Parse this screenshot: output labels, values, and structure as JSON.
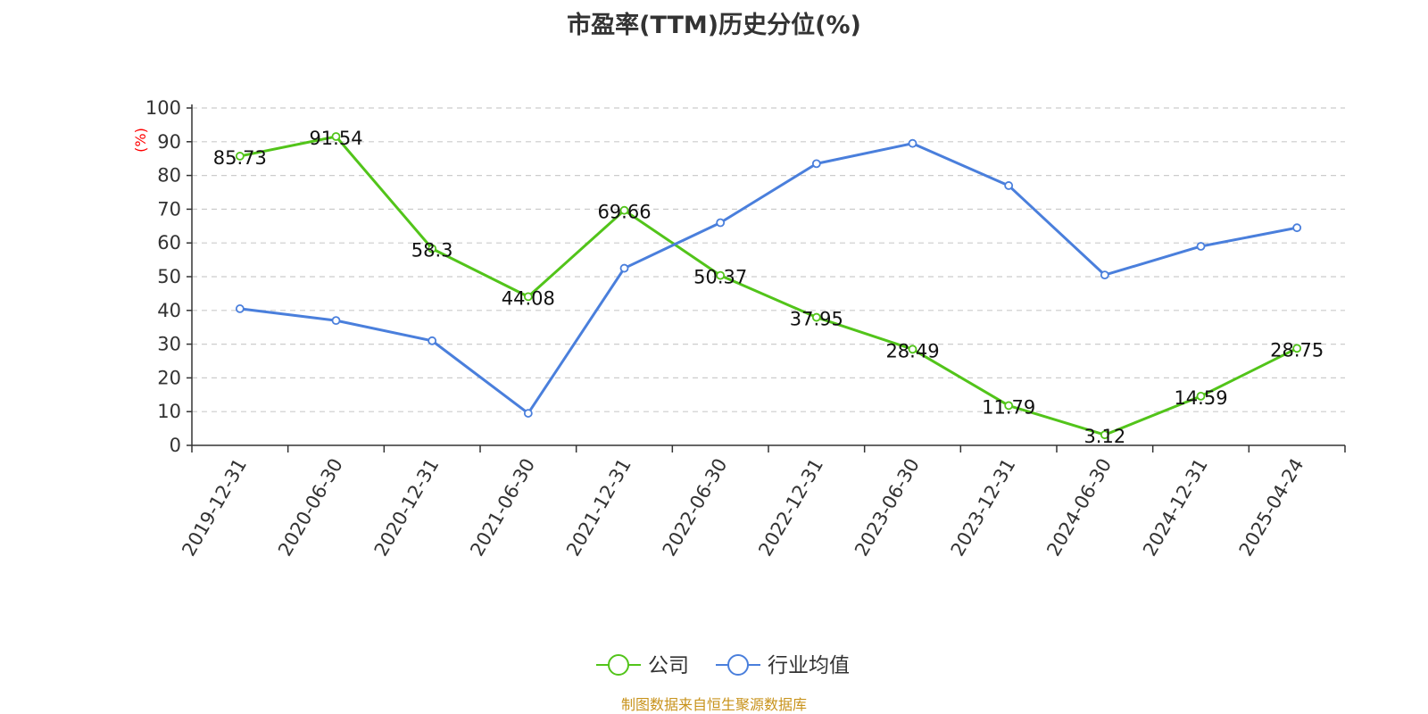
{
  "chart_data": {
    "type": "line",
    "title": "市盈率(TTM)历史分位(%)",
    "ylabel": "(%)",
    "ylim": [
      0,
      100
    ],
    "yticks": [
      0,
      10,
      20,
      30,
      40,
      50,
      60,
      70,
      80,
      90,
      100
    ],
    "ytick_labels": [
      "0",
      "10",
      "20",
      "30",
      "40",
      "50",
      "60",
      "70",
      "80",
      "90",
      "100"
    ],
    "grid": "horizontal-dashed",
    "legend_position": "bottom",
    "categories": [
      "2019-12-31",
      "2020-06-30",
      "2020-12-31",
      "2021-06-30",
      "2021-12-31",
      "2022-06-30",
      "2022-12-31",
      "2023-06-30",
      "2023-12-31",
      "2024-06-30",
      "2024-12-31",
      "2025-04-24"
    ],
    "series": [
      {
        "name": "公司",
        "color": "#52c41a",
        "show_labels": true,
        "values": [
          85.73,
          91.54,
          58.3,
          44.08,
          69.66,
          50.37,
          37.95,
          28.49,
          11.79,
          3.12,
          14.59,
          28.75
        ],
        "labels": [
          "85.73",
          "91.54",
          "58.3",
          "44.08",
          "69.66",
          "50.37",
          "37.95",
          "28.49",
          "11.79",
          "3.12",
          "14.59",
          "28.75"
        ]
      },
      {
        "name": "行业均值",
        "color": "#4a7fdc",
        "show_labels": false,
        "values": [
          40.5,
          37.0,
          31.0,
          9.5,
          52.5,
          66.0,
          83.5,
          89.5,
          77.0,
          50.5,
          59.0,
          64.5
        ]
      }
    ]
  },
  "source_text": "制图数据来自恒生聚源数据库",
  "colors": {
    "title": "#333333",
    "axis": "#333333",
    "grid": "#cccccc",
    "ylabel": "#ff0000",
    "source": "#c8931c"
  }
}
